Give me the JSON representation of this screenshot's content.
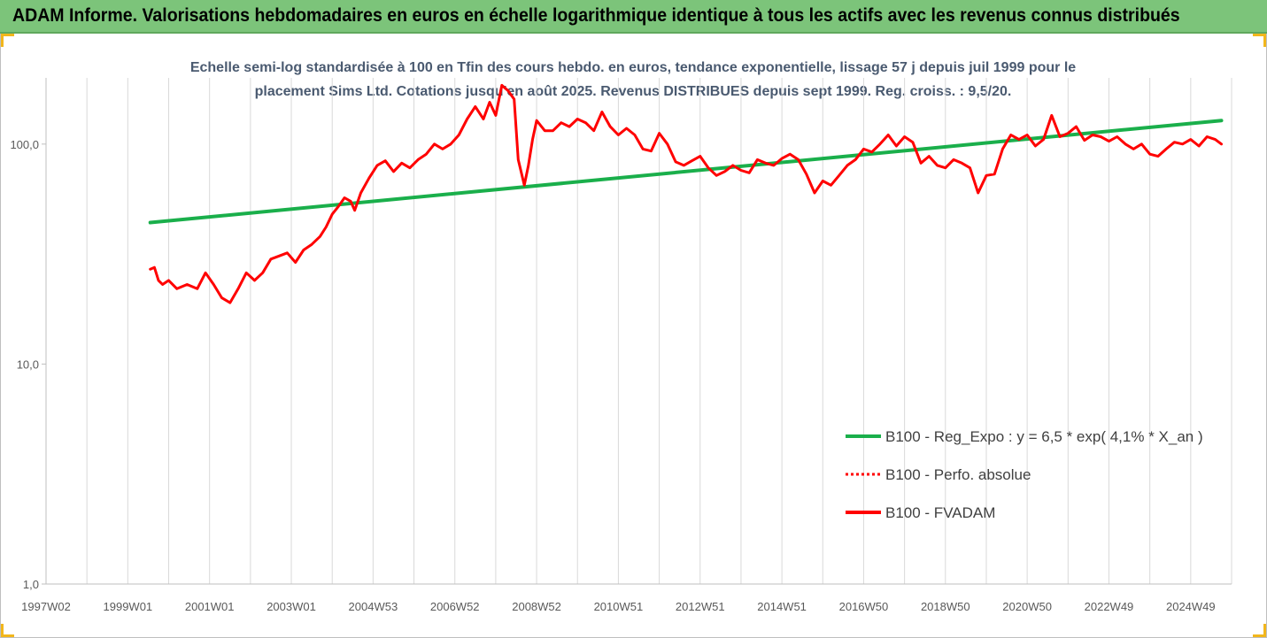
{
  "header": {
    "title": "ADAM Informe. Valorisations hebdomadaires en euros en échelle logarithmique identique à tous les actifs avec les revenus connus distribués"
  },
  "colors": {
    "header_bg": "#7cc47a",
    "trend": "#1aaf4b",
    "series": "#ff0000",
    "axis": "#bfbfbf",
    "gridline": "#d9d9d9"
  },
  "chart_data": {
    "type": "line",
    "subtitle_lines": [
      "Echelle semi-log standardisée à 100 en Tfin des cours hebdo. en euros, tendance exponentielle, lissage 57 j depuis juil 1999 pour le",
      "placement Sims Ltd. Cotations jusqu'en août 2025. Revenus DISTRIBUES depuis sept 1999. Reg. croiss. : 9,5/20."
    ],
    "y_scale": "log",
    "ylim": [
      1,
      200
    ],
    "y_ticks": [
      {
        "value": 1,
        "label": "1,0"
      },
      {
        "value": 10,
        "label": "10,0"
      },
      {
        "value": 100,
        "label": "100,0"
      }
    ],
    "xlim": [
      1997.0,
      2026.0
    ],
    "x_ticks": [
      {
        "value": 1997.0,
        "label": "1997W02"
      },
      {
        "value": 1999.0,
        "label": "1999W01"
      },
      {
        "value": 2001.0,
        "label": "2001W01"
      },
      {
        "value": 2003.0,
        "label": "2003W01"
      },
      {
        "value": 2005.0,
        "label": "2004W53"
      },
      {
        "value": 2007.0,
        "label": "2006W52"
      },
      {
        "value": 2009.0,
        "label": "2008W52"
      },
      {
        "value": 2011.0,
        "label": "2010W51"
      },
      {
        "value": 2013.0,
        "label": "2012W51"
      },
      {
        "value": 2015.0,
        "label": "2014W51"
      },
      {
        "value": 2017.0,
        "label": "2016W50"
      },
      {
        "value": 2019.0,
        "label": "2018W50"
      },
      {
        "value": 2021.0,
        "label": "2020W50"
      },
      {
        "value": 2023.0,
        "label": "2022W49"
      },
      {
        "value": 2025.0,
        "label": "2024W49"
      }
    ],
    "x_gridlines": [
      1997.0,
      1998.0,
      1999.0,
      2000.0,
      2001.0,
      2002.0,
      2003.0,
      2004.0,
      2005.0,
      2006.0,
      2007.0,
      2008.0,
      2009.0,
      2010.0,
      2011.0,
      2012.0,
      2013.0,
      2014.0,
      2015.0,
      2016.0,
      2017.0,
      2018.0,
      2019.0,
      2020.0,
      2021.0,
      2022.0,
      2023.0,
      2024.0,
      2025.0,
      2026.0
    ],
    "legend_position": "bottom-right",
    "series": [
      {
        "name": "B100 - Reg_Expo : y = 6,5 * exp( 4,1% *  X_an )",
        "color": "#1aaf4b",
        "style": "solid",
        "x": [
          1999.55,
          2025.75
        ],
        "y": [
          44,
          128
        ]
      },
      {
        "name": "B100 - Perfo. absolue",
        "color": "#ff0000",
        "style": "dotted",
        "x": [],
        "y": []
      },
      {
        "name": "B100 - FVADAM",
        "color": "#ff0000",
        "style": "solid",
        "x": [
          1999.55,
          1999.65,
          1999.75,
          1999.85,
          2000.0,
          2000.2,
          2000.45,
          2000.7,
          2000.9,
          2001.1,
          2001.3,
          2001.5,
          2001.7,
          2001.9,
          2002.1,
          2002.3,
          2002.5,
          2002.7,
          2002.9,
          2003.1,
          2003.3,
          2003.5,
          2003.7,
          2003.85,
          2004.0,
          2004.15,
          2004.3,
          2004.45,
          2004.55,
          2004.7,
          2004.9,
          2005.1,
          2005.3,
          2005.5,
          2005.7,
          2005.9,
          2006.1,
          2006.3,
          2006.5,
          2006.7,
          2006.9,
          2007.1,
          2007.3,
          2007.5,
          2007.7,
          2007.85,
          2008.0,
          2008.15,
          2008.3,
          2008.45,
          2008.55,
          2008.7,
          2008.8,
          2008.9,
          2009.0,
          2009.2,
          2009.4,
          2009.6,
          2009.8,
          2010.0,
          2010.2,
          2010.4,
          2010.6,
          2010.8,
          2011.0,
          2011.2,
          2011.4,
          2011.6,
          2011.8,
          2012.0,
          2012.2,
          2012.4,
          2012.6,
          2012.8,
          2013.0,
          2013.2,
          2013.4,
          2013.6,
          2013.8,
          2014.0,
          2014.2,
          2014.4,
          2014.6,
          2014.8,
          2015.0,
          2015.2,
          2015.4,
          2015.6,
          2015.8,
          2016.0,
          2016.2,
          2016.4,
          2016.6,
          2016.8,
          2017.0,
          2017.2,
          2017.4,
          2017.6,
          2017.8,
          2018.0,
          2018.2,
          2018.4,
          2018.6,
          2018.8,
          2019.0,
          2019.2,
          2019.4,
          2019.6,
          2019.8,
          2020.0,
          2020.2,
          2020.4,
          2020.6,
          2020.8,
          2021.0,
          2021.2,
          2021.4,
          2021.6,
          2021.8,
          2022.0,
          2022.2,
          2022.4,
          2022.6,
          2022.8,
          2023.0,
          2023.2,
          2023.4,
          2023.6,
          2023.8,
          2024.0,
          2024.2,
          2024.4,
          2024.6,
          2024.8,
          2025.0,
          2025.2,
          2025.4,
          2025.6,
          2025.75
        ],
        "y": [
          27,
          27.5,
          24,
          23,
          24,
          22,
          23,
          22,
          26,
          23,
          20,
          19,
          22,
          26,
          24,
          26,
          30,
          31,
          32,
          29,
          33,
          35,
          38,
          42,
          48,
          52,
          57,
          55,
          50,
          60,
          70,
          80,
          84,
          75,
          82,
          78,
          85,
          90,
          100,
          95,
          100,
          110,
          130,
          148,
          130,
          155,
          135,
          185,
          175,
          160,
          85,
          65,
          80,
          105,
          128,
          115,
          115,
          125,
          120,
          130,
          125,
          115,
          140,
          120,
          110,
          118,
          110,
          95,
          93,
          112,
          100,
          83,
          80,
          84,
          88,
          78,
          72,
          75,
          80,
          76,
          74,
          85,
          82,
          80,
          86,
          90,
          85,
          73,
          60,
          68,
          65,
          72,
          80,
          85,
          95,
          92,
          100,
          110,
          98,
          108,
          102,
          82,
          88,
          80,
          78,
          85,
          82,
          78,
          60,
          72,
          73,
          95,
          110,
          105,
          110,
          98,
          105,
          135,
          108,
          112,
          120,
          104,
          110,
          108,
          103,
          108,
          100,
          95,
          100,
          90,
          88,
          95,
          102,
          100,
          105,
          98,
          108,
          105,
          100
        ]
      }
    ]
  }
}
